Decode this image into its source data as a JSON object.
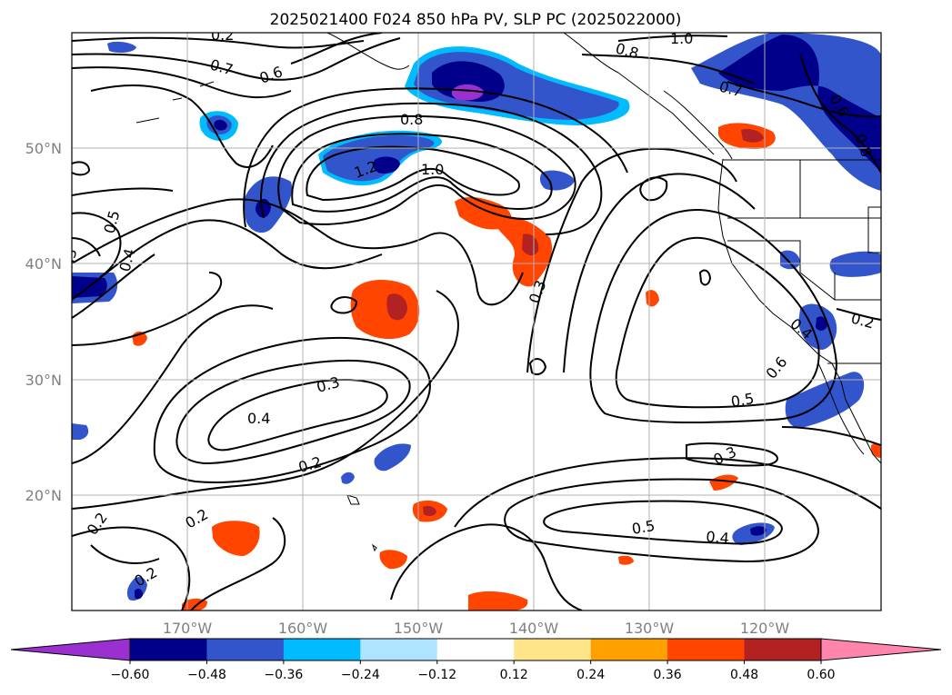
{
  "title": "2025021400 F024 850 hPa PV, SLP PC (2025022000)",
  "lat_labels": [
    "50°N",
    "40°N",
    "30°N",
    "20°N"
  ],
  "lon_labels": [
    "170°W",
    "160°W",
    "150°W",
    "140°W",
    "130°W",
    "120°W"
  ],
  "colorbar": {
    "ticks": [
      "−0.60",
      "−0.48",
      "−0.36",
      "−0.24",
      "−0.12",
      "0.12",
      "0.24",
      "0.36",
      "0.48",
      "0.60"
    ],
    "colors": [
      "#9b30d0",
      "#00008b",
      "#3355cc",
      "#00bbff",
      "#aee4ff",
      "#ffffff",
      "#ffe58a",
      "#ffa000",
      "#ff4500",
      "#b22222",
      "#ff85ad"
    ]
  },
  "contour_labels": [
    "0.8",
    "1.0",
    "1.2",
    "0.7",
    "0.6",
    "0.5",
    "0.4",
    "0.3",
    "0.2",
    "0.8",
    "1.0",
    "0.7",
    "0.6",
    "0.8",
    "0.3",
    "0.5",
    "0.2",
    "0.6",
    "0.4",
    "0.3",
    "0.5",
    "0.4",
    "0.2",
    "0.2",
    "0.2",
    "0.3",
    "0.4",
    "0.2"
  ],
  "colors": {
    "grid": "#b0b0b0",
    "contour": "#000000",
    "coast": "#000000"
  }
}
